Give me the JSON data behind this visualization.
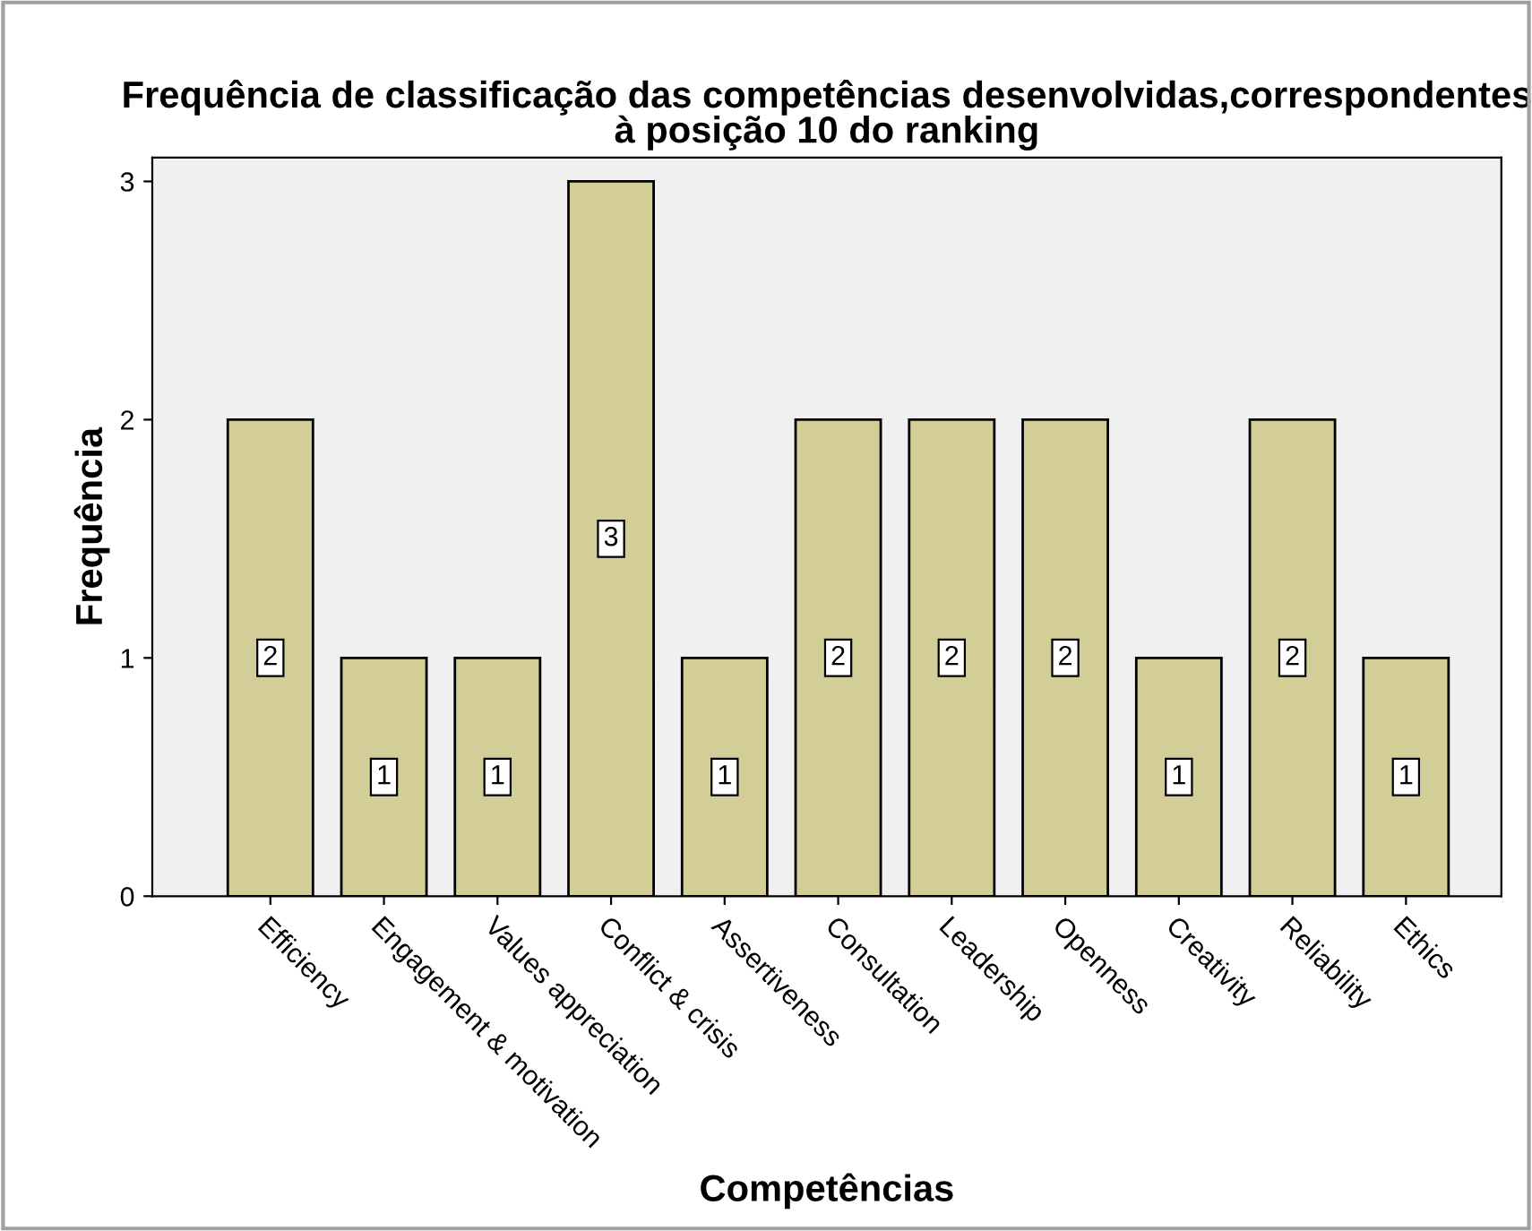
{
  "chart_data": {
    "type": "bar",
    "title": "Frequência de classificação das competências desenvolvidas,correspondentes\nà posição 10 do ranking",
    "xlabel": "Competências",
    "ylabel": "Frequência",
    "categories": [
      "Efficiency",
      "Engagement & motivation",
      "Values appreciation",
      "Conflict & crisis",
      "Assertiveness",
      "Consultation",
      "Leadership",
      "Openness",
      "Creativity",
      "Reliability",
      "Ethics"
    ],
    "values": [
      2,
      1,
      1,
      3,
      1,
      2,
      2,
      2,
      1,
      2,
      1
    ],
    "color": "#d3ce98",
    "ylim": [
      0,
      3.1
    ],
    "yticks": [
      0,
      1,
      2,
      3
    ],
    "grid": false,
    "data_labels": true
  }
}
